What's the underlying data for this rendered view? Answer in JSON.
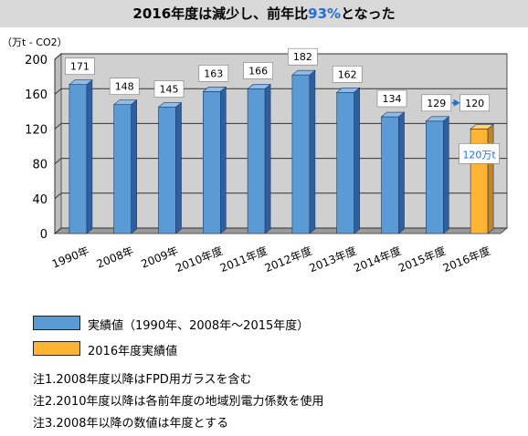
{
  "title": {
    "prefix": "2016年度は減少し、前年比",
    "accent": "93%",
    "suffix": "となった"
  },
  "colors": {
    "actual": "#5b9bd5",
    "actual_side": "#2f5f9e",
    "actual_top": "#8fbbe6",
    "current": "#ffb533",
    "current_side": "#c9841a",
    "current_top": "#ffd27a",
    "wall": "#d0d0d0",
    "floor": "#9a9a9a",
    "accent": "#1f6fd6"
  },
  "chart_data": {
    "type": "bar",
    "ylabel": "（万t - CO2）",
    "ylim": [
      0,
      200
    ],
    "yticks": [
      0,
      40,
      80,
      120,
      160,
      200
    ],
    "categories": [
      "1990年",
      "2008年",
      "2009年",
      "2010年度",
      "2011年度",
      "2012年度",
      "2013年度",
      "2014年度",
      "2015年度",
      "2016年度"
    ],
    "values": [
      171,
      148,
      145,
      163,
      166,
      182,
      162,
      134,
      129,
      120
    ],
    "value_labels": [
      "171",
      "148",
      "145",
      "163",
      "166",
      "182",
      "162",
      "134",
      "129",
      "120"
    ],
    "highlight_index": 9,
    "highlight_callout": "120万t"
  },
  "legend": [
    {
      "label": "実績値（1990年、2008年～2015年度）",
      "series": "actual"
    },
    {
      "label": "2016年度実績値",
      "series": "current"
    }
  ],
  "notes": [
    "注1.2008年度以降はFPD用ガラスを含む",
    "注2.2010年度以降は各前年度の地域別電力係数を使用",
    "注3.2008年以降の数値は年度とする"
  ]
}
